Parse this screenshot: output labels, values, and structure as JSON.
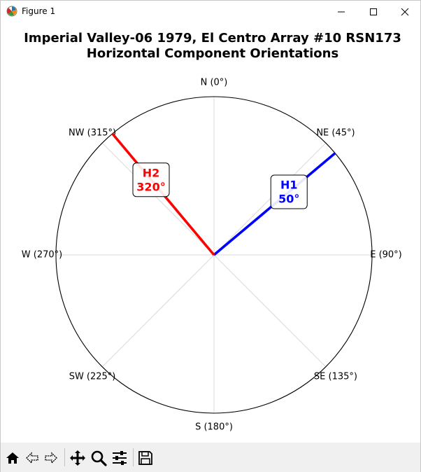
{
  "window": {
    "title": "Figure 1",
    "icon": "matplotlib-icon",
    "controls": [
      "minimize-icon",
      "maximize-icon",
      "close-icon"
    ]
  },
  "figure": {
    "title_line1": "Imperial Valley-06 1979, El Centro Array #10 RSN173",
    "title_line2": "Horizontal Component Orientations"
  },
  "chart_data": {
    "type": "polar",
    "title": "Imperial Valley-06 1979, El Centro Array #10 RSN173\nHorizontal Component Orientations",
    "direction_labels": [
      {
        "text": "N (0°)",
        "angle": 0
      },
      {
        "text": "NE (45°)",
        "angle": 45
      },
      {
        "text": "E (90°)",
        "angle": 90
      },
      {
        "text": "SE (135°)",
        "angle": 135
      },
      {
        "text": "S (180°)",
        "angle": 180
      },
      {
        "text": "SW (225°)",
        "angle": 225
      },
      {
        "text": "W (270°)",
        "angle": 270
      },
      {
        "text": "NW (315°)",
        "angle": 315
      }
    ],
    "components": [
      {
        "name": "H1",
        "angle_label": "50°",
        "azimuth": 50,
        "color": "#0000ff"
      },
      {
        "name": "H2",
        "angle_label": "320°",
        "azimuth": 320,
        "color": "#ff0000"
      }
    ],
    "reference_lines": [
      0,
      45,
      90,
      135,
      180,
      225,
      270,
      315
    ],
    "grid": true
  },
  "toolbar": {
    "buttons": [
      {
        "name": "home-icon"
      },
      {
        "name": "back-icon"
      },
      {
        "name": "forward-icon"
      },
      {
        "name": "pan-icon"
      },
      {
        "name": "zoom-icon"
      },
      {
        "name": "configure-subplots-icon"
      },
      {
        "name": "save-icon"
      }
    ]
  }
}
